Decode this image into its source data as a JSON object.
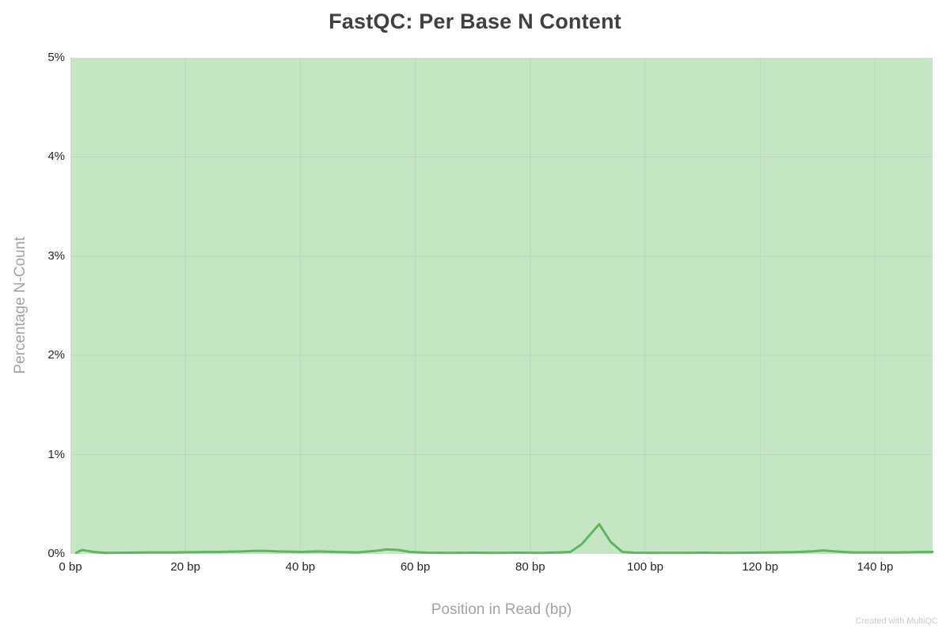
{
  "footer": {
    "credit": "Created with MultiQC"
  },
  "chart_data": {
    "type": "line",
    "title": "FastQC: Per Base N Content",
    "xlabel": "Position in Read (bp)",
    "ylabel": "Percentage N-Count",
    "xlim": [
      0,
      150
    ],
    "ylim": [
      0,
      5
    ],
    "grid": true,
    "legend": "none",
    "x_ticks": [
      {
        "value": 0,
        "label": "0 bp"
      },
      {
        "value": 20,
        "label": "20 bp"
      },
      {
        "value": 40,
        "label": "40 bp"
      },
      {
        "value": 60,
        "label": "60 bp"
      },
      {
        "value": 80,
        "label": "80 bp"
      },
      {
        "value": 100,
        "label": "100 bp"
      },
      {
        "value": 120,
        "label": "120 bp"
      },
      {
        "value": 140,
        "label": "140 bp"
      }
    ],
    "y_ticks": [
      {
        "value": 0,
        "label": "0%"
      },
      {
        "value": 1,
        "label": "1%"
      },
      {
        "value": 2,
        "label": "2%"
      },
      {
        "value": 3,
        "label": "3%"
      },
      {
        "value": 4,
        "label": "4%"
      },
      {
        "value": 5,
        "label": "5%"
      }
    ],
    "colors": {
      "plot_background": "#c5e5c5",
      "line": "#5cb85c",
      "grid": "rgba(0,0,0,0.05)",
      "title": "#404040",
      "tick_label": "#262626",
      "axis_label": "#a3a3a3",
      "credit": "#cbcbcb"
    },
    "series": [
      {
        "name": "Per Base N Content",
        "x": [
          1,
          2,
          3,
          4,
          6,
          10,
          14,
          18,
          22,
          26,
          30,
          32,
          34,
          36,
          40,
          43,
          46,
          50,
          53,
          55,
          57,
          59,
          62,
          66,
          70,
          74,
          78,
          82,
          85,
          87,
          89,
          92,
          94,
          96,
          98,
          102,
          106,
          110,
          114,
          118,
          122,
          126,
          129,
          131,
          133,
          136,
          140,
          144,
          147,
          150
        ],
        "y": [
          0.01,
          0.04,
          0.03,
          0.02,
          0.01,
          0.012,
          0.015,
          0.015,
          0.018,
          0.02,
          0.025,
          0.03,
          0.03,
          0.025,
          0.02,
          0.025,
          0.02,
          0.015,
          0.03,
          0.045,
          0.04,
          0.02,
          0.012,
          0.01,
          0.012,
          0.01,
          0.012,
          0.01,
          0.015,
          0.02,
          0.1,
          0.3,
          0.12,
          0.02,
          0.012,
          0.01,
          0.01,
          0.012,
          0.01,
          0.012,
          0.015,
          0.018,
          0.025,
          0.035,
          0.025,
          0.015,
          0.015,
          0.015,
          0.018,
          0.02
        ]
      }
    ]
  }
}
